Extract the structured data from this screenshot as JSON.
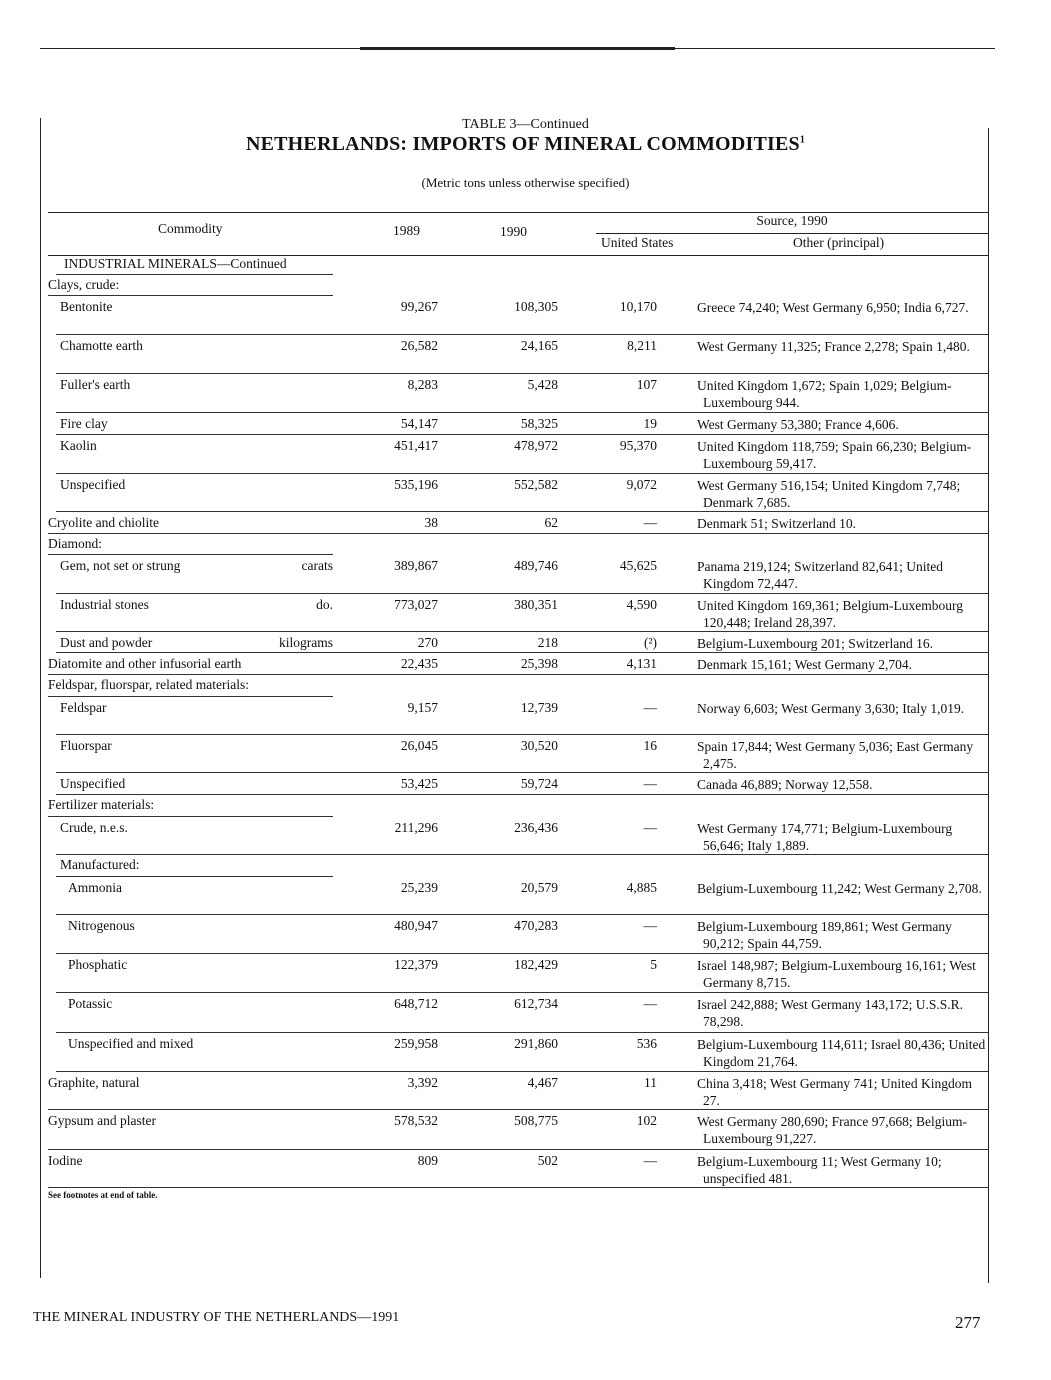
{
  "caption": "TABLE 3—Continued",
  "title": "NETHERLANDS: IMPORTS OF MINERAL COMMODITIES",
  "title_footnote": "1",
  "subtitle": "(Metric tons unless otherwise specified)",
  "columns": {
    "commodity": "Commodity",
    "y1989": "1989",
    "y1990": "1990",
    "source": "Source, 1990",
    "us": "United States",
    "other": "Other (principal)"
  },
  "rows": [
    {
      "type": "hdr",
      "indent": 16,
      "name": "INDUSTRIAL MINERALS—Continued"
    },
    {
      "type": "hdr",
      "indent": 0,
      "name": "Clays, crude:"
    },
    {
      "type": "data",
      "indent": 12,
      "name": "Bentonite",
      "v1989": "99,267",
      "v1990": "108,305",
      "us": "10,170",
      "other": "Greece 74,240; West Germany 6,950; India 6,727."
    },
    {
      "type": "data",
      "indent": 12,
      "name": "Chamotte earth",
      "v1989": "26,582",
      "v1990": "24,165",
      "us": "8,211",
      "other": "West Germany 11,325; France 2,278; Spain 1,480."
    },
    {
      "type": "data",
      "indent": 12,
      "name": "Fuller's earth",
      "v1989": "8,283",
      "v1990": "5,428",
      "us": "107",
      "other": "United Kingdom 1,672; Spain 1,029; Belgium-Luxembourg 944."
    },
    {
      "type": "data",
      "indent": 12,
      "name": "Fire clay",
      "v1989": "54,147",
      "v1990": "58,325",
      "us": "19",
      "other": "West Germany 53,380; France 4,606."
    },
    {
      "type": "data",
      "indent": 12,
      "name": "Kaolin",
      "v1989": "451,417",
      "v1990": "478,972",
      "us": "95,370",
      "other": "United Kingdom 118,759; Spain 66,230; Belgium-Luxembourg 59,417."
    },
    {
      "type": "data",
      "indent": 12,
      "name": "Unspecified",
      "v1989": "535,196",
      "v1990": "552,582",
      "us": "9,072",
      "other": "West Germany 516,154; United Kingdom 7,748; Denmark 7,685."
    },
    {
      "type": "data",
      "indent": 0,
      "name": "Cryolite and chiolite",
      "v1989": "38",
      "v1990": "62",
      "us": "—",
      "other": "Denmark 51; Switzerland 10."
    },
    {
      "type": "hdr",
      "indent": 0,
      "name": "Diamond:"
    },
    {
      "type": "data",
      "indent": 12,
      "name": "Gem, not set or strung",
      "unit": "carats",
      "v1989": "389,867",
      "v1990": "489,746",
      "us": "45,625",
      "other": "Panama 219,124; Switzerland 82,641; United Kingdom 72,447."
    },
    {
      "type": "data",
      "indent": 12,
      "name": "Industrial stones",
      "unit": "do.",
      "v1989": "773,027",
      "v1990": "380,351",
      "us": "4,590",
      "other": "United Kingdom 169,361; Belgium-Luxembourg 120,448; Ireland 28,397."
    },
    {
      "type": "data",
      "indent": 12,
      "name": "Dust and powder",
      "unit": "kilograms",
      "v1989": "270",
      "v1990": "218",
      "us": "(²)",
      "other": "Belgium-Luxembourg 201; Switzerland 16."
    },
    {
      "type": "data",
      "indent": 0,
      "name": "Diatomite and other infusorial earth",
      "v1989": "22,435",
      "v1990": "25,398",
      "us": "4,131",
      "other": "Denmark 15,161; West Germany 2,704."
    },
    {
      "type": "hdr",
      "indent": 0,
      "name": "Feldspar, fluorspar, related materials:"
    },
    {
      "type": "data",
      "indent": 12,
      "name": "Feldspar",
      "v1989": "9,157",
      "v1990": "12,739",
      "us": "—",
      "other": "Norway 6,603; West Germany 3,630; Italy 1,019."
    },
    {
      "type": "data",
      "indent": 12,
      "name": "Fluorspar",
      "v1989": "26,045",
      "v1990": "30,520",
      "us": "16",
      "other": "Spain 17,844; West Germany 5,036; East Germany 2,475."
    },
    {
      "type": "data",
      "indent": 12,
      "name": "Unspecified",
      "v1989": "53,425",
      "v1990": "59,724",
      "us": "—",
      "other": "Canada 46,889; Norway 12,558."
    },
    {
      "type": "hdr",
      "indent": 0,
      "name": "Fertilizer materials:"
    },
    {
      "type": "data",
      "indent": 12,
      "name": "Crude, n.e.s.",
      "v1989": "211,296",
      "v1990": "236,436",
      "us": "—",
      "other": "West Germany 174,771; Belgium-Luxembourg 56,646; Italy 1,889."
    },
    {
      "type": "hdr",
      "indent": 12,
      "name": "Manufactured:"
    },
    {
      "type": "data",
      "indent": 20,
      "name": "Ammonia",
      "v1989": "25,239",
      "v1990": "20,579",
      "us": "4,885",
      "other": "Belgium-Luxembourg 11,242; West Germany 2,708."
    },
    {
      "type": "data",
      "indent": 20,
      "name": "Nitrogenous",
      "v1989": "480,947",
      "v1990": "470,283",
      "us": "—",
      "other": "Belgium-Luxembourg 189,861; West Germany 90,212; Spain 44,759."
    },
    {
      "type": "data",
      "indent": 20,
      "name": "Phosphatic",
      "v1989": "122,379",
      "v1990": "182,429",
      "us": "5",
      "other": "Israel 148,987; Belgium-Luxembourg 16,161; West Germany 8,715."
    },
    {
      "type": "data",
      "indent": 20,
      "name": "Potassic",
      "v1989": "648,712",
      "v1990": "612,734",
      "us": "—",
      "other": "Israel 242,888; West Germany 143,172; U.S.S.R. 78,298."
    },
    {
      "type": "data",
      "indent": 20,
      "name": "Unspecified and mixed",
      "v1989": "259,958",
      "v1990": "291,860",
      "us": "536",
      "other": "Belgium-Luxembourg 114,611; Israel 80,436; United Kingdom 21,764."
    },
    {
      "type": "data",
      "indent": 0,
      "name": "Graphite, natural",
      "v1989": "3,392",
      "v1990": "4,467",
      "us": "11",
      "other": "China 3,418; West Germany 741; United Kingdom 27."
    },
    {
      "type": "data",
      "indent": 0,
      "name": "Gypsum and plaster",
      "v1989": "578,532",
      "v1990": "508,775",
      "us": "102",
      "other": "West Germany 280,690; France 97,668; Belgium-Luxembourg 91,227."
    },
    {
      "type": "data",
      "indent": 0,
      "name": "Iodine",
      "v1989": "809",
      "v1990": "502",
      "us": "—",
      "other": "Belgium-Luxembourg 11; West Germany 10; unspecified 481."
    }
  ],
  "footnote": "See footnotes at end of table.",
  "footer": {
    "publication": "THE MINERAL INDUSTRY OF THE NETHERLANDS—1991",
    "page_number": "277"
  }
}
